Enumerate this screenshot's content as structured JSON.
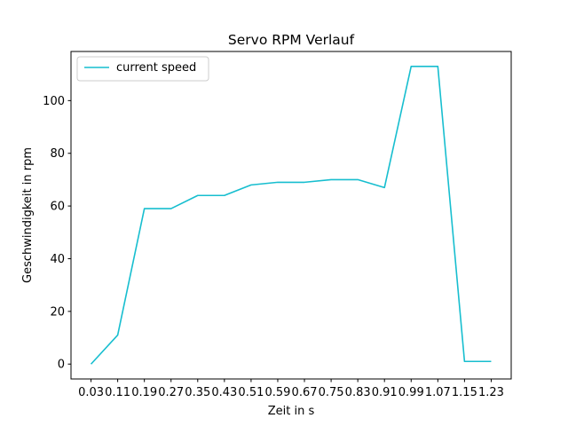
{
  "chart_data": {
    "type": "line",
    "title": "Servo RPM Verlauf",
    "xlabel": "Zeit in s",
    "ylabel": "Geschwindigkeit in rpm",
    "x": [
      "0.03",
      "0.11",
      "0.19",
      "0.27",
      "0.35",
      "0.43",
      "0.51",
      "0.59",
      "0.67",
      "0.75",
      "0.83",
      "0.91",
      "0.99",
      "1.07",
      "1.15",
      "1.23"
    ],
    "series": [
      {
        "name": "current speed",
        "color": "#17becf",
        "values": [
          0,
          11,
          59,
          59,
          64,
          64,
          68,
          69,
          69,
          70,
          70,
          67,
          113,
          113,
          1,
          1
        ]
      }
    ],
    "ylim": [
      -5.65,
      118.65
    ],
    "yticks": [
      0,
      20,
      40,
      60,
      80,
      100
    ],
    "grid": false,
    "legend": "upper left"
  }
}
